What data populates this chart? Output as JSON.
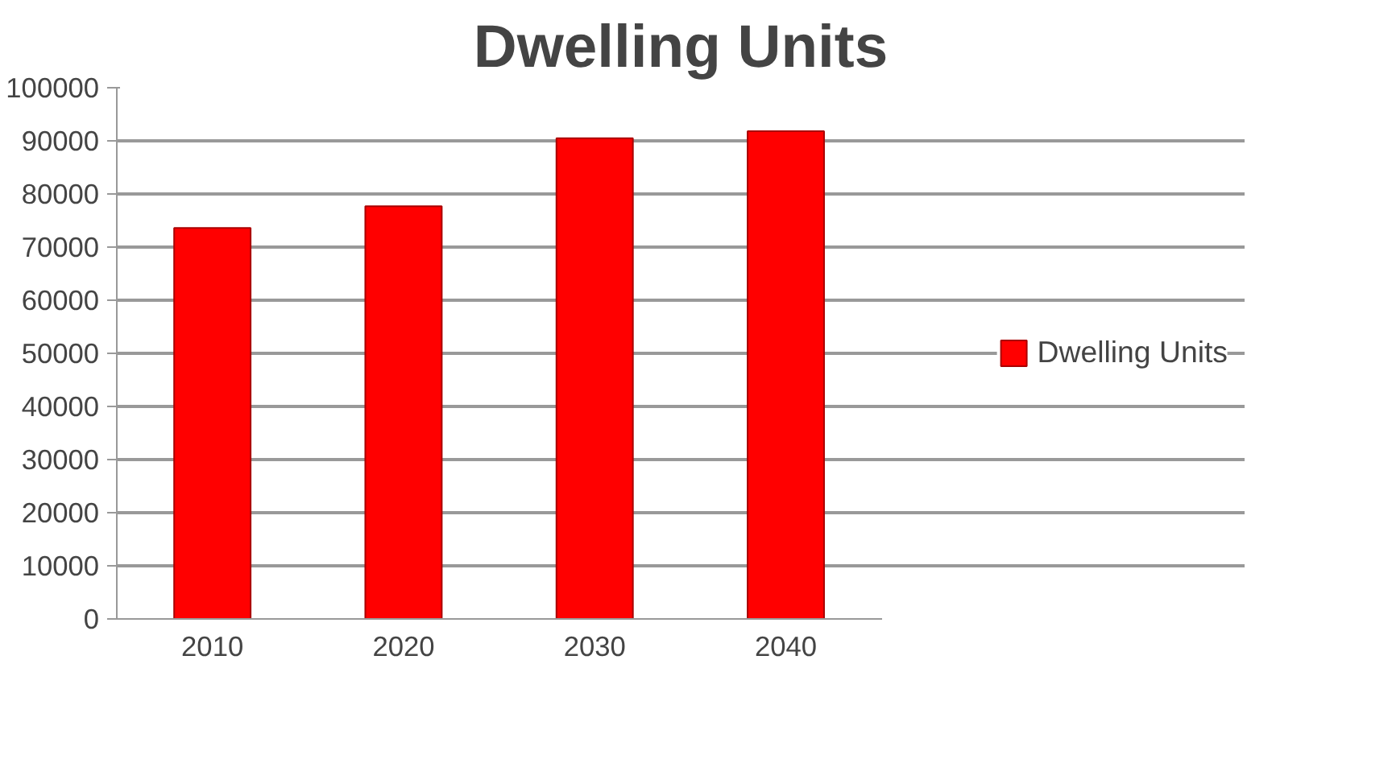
{
  "chart_data": {
    "type": "bar",
    "title": "Dwelling Units",
    "categories": [
      "2010",
      "2020",
      "2030",
      "2040"
    ],
    "series": [
      {
        "name": "Dwelling Units",
        "color": "#ff0000",
        "values": [
          73600,
          77700,
          90500,
          91800
        ]
      }
    ],
    "ylim": [
      0,
      100000
    ],
    "yticks": [
      0,
      10000,
      20000,
      30000,
      40000,
      50000,
      60000,
      70000,
      80000,
      90000,
      100000
    ],
    "grid": "y",
    "legend": "right"
  }
}
